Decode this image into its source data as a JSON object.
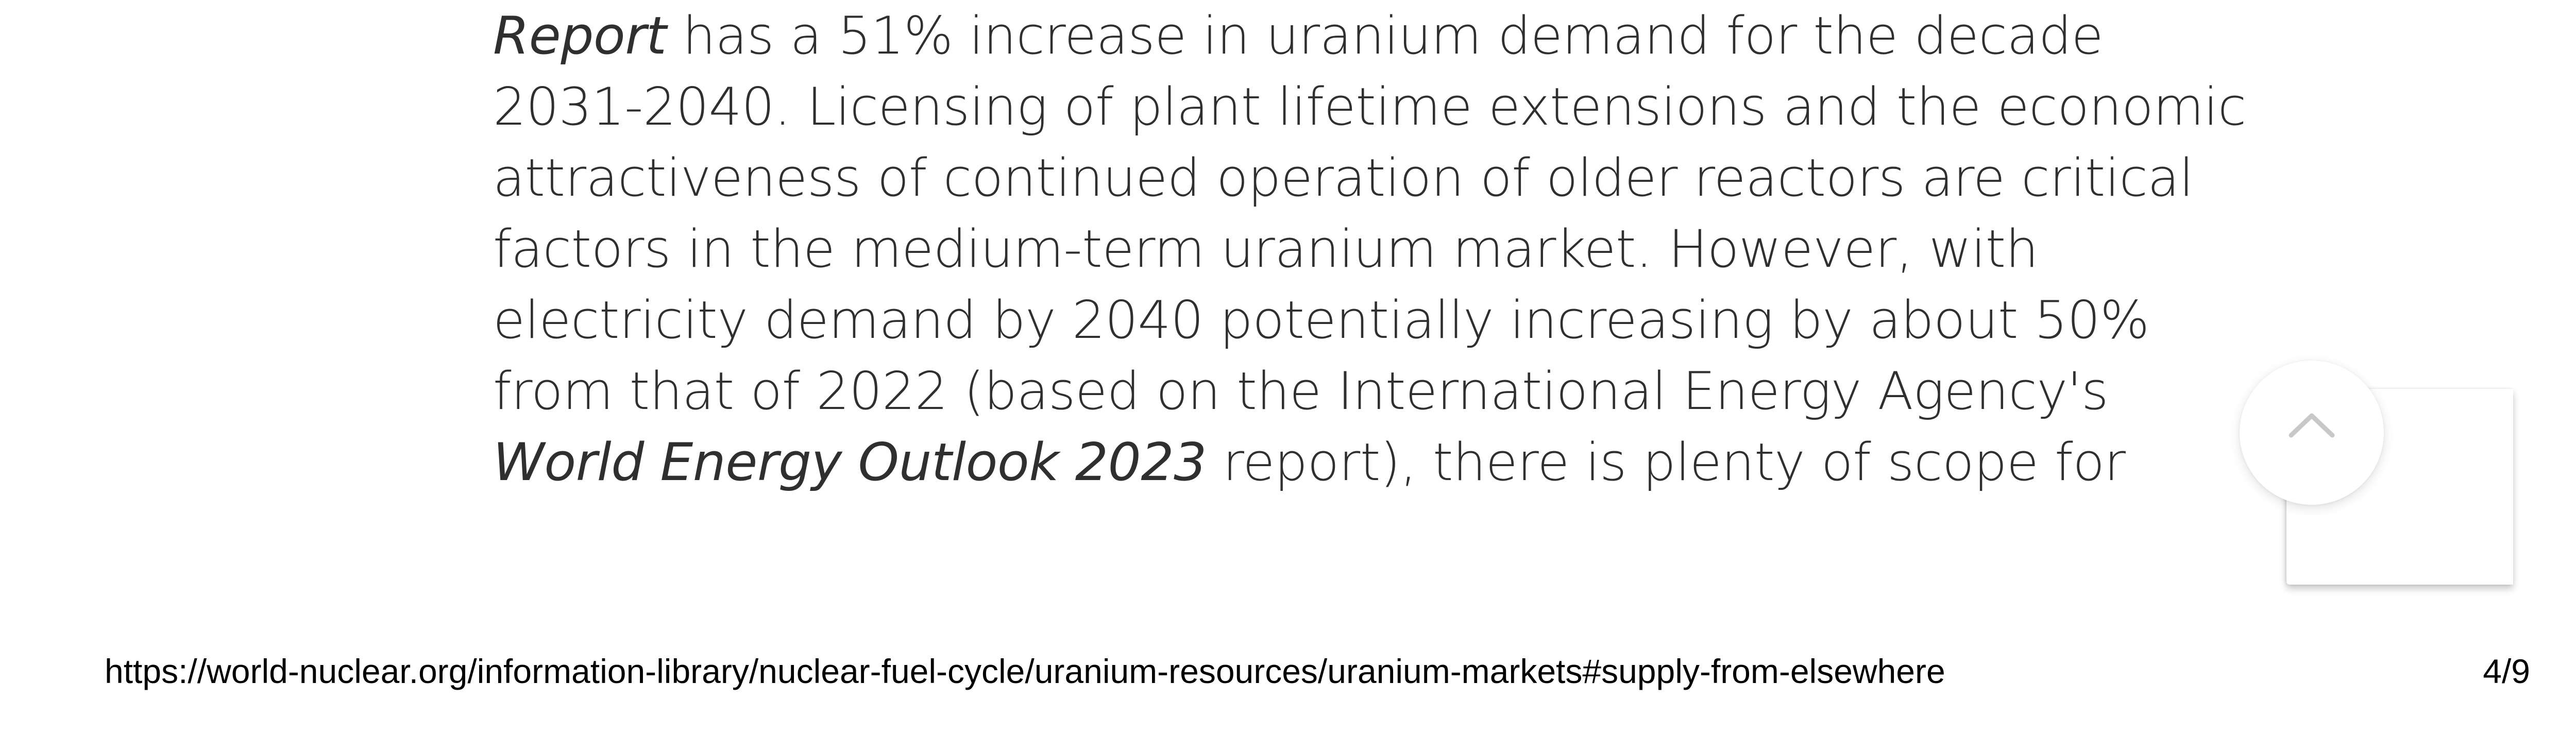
{
  "article": {
    "lines": [
      {
        "italic": "Report",
        "rest": " has a 51% increase in uranium demand for the decade"
      },
      {
        "text": "2031-2040. Licensing of plant lifetime extensions and the economic"
      },
      {
        "text": "attractiveness of continued operation of older reactors are critical"
      },
      {
        "text": "factors in the medium-term uranium market. However, with"
      },
      {
        "text": "electricity demand by 2040 potentially increasing by about 50%"
      },
      {
        "text": "from that of 2022 (based on the International Energy Agency's"
      },
      {
        "italic": "World Energy Outlook 2023",
        "rest": " report), there is plenty of scope for"
      }
    ]
  },
  "scroll_top_button": {
    "icon": "chevron-up-icon"
  },
  "footer": {
    "url": "https://world-nuclear.org/information-library/nuclear-fuel-cycle/uranium-resources/uranium-markets#supply-from-elsewhere",
    "page": "4/9"
  },
  "colors": {
    "text": "#2f2f2f",
    "footer_text": "#000000",
    "icon": "#c8c8c8",
    "background": "#ffffff"
  }
}
